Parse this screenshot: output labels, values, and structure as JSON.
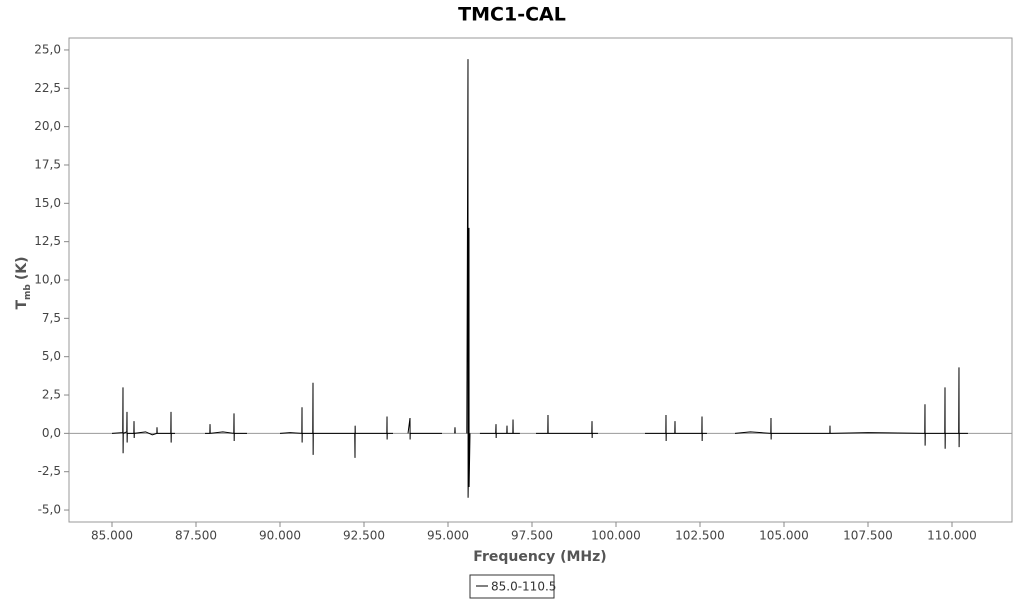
{
  "chart_data": {
    "type": "line",
    "title": "TMC1-CAL",
    "x_label": "Frequency (MHz)",
    "y_label": "T",
    "y_label_sub": "mb",
    "y_label_unit": "(K)",
    "xlim": [
      83720,
      111786
    ],
    "ylim": [
      -5.78,
      25.78
    ],
    "xticks": [
      {
        "value": 85000,
        "label": "85.000"
      },
      {
        "value": 87500,
        "label": "87.500"
      },
      {
        "value": 90000,
        "label": "90.000"
      },
      {
        "value": 92500,
        "label": "92.500"
      },
      {
        "value": 95000,
        "label": "95.000"
      },
      {
        "value": 97500,
        "label": "97.500"
      },
      {
        "value": 100000,
        "label": "100.000"
      },
      {
        "value": 102500,
        "label": "102.500"
      },
      {
        "value": 105000,
        "label": "105.000"
      },
      {
        "value": 107500,
        "label": "107.500"
      },
      {
        "value": 110000,
        "label": "110.000"
      }
    ],
    "yticks": [
      {
        "value": -5,
        "label": "-5,0"
      },
      {
        "value": -2.5,
        "label": "-2,5"
      },
      {
        "value": 0,
        "label": "0,0"
      },
      {
        "value": 2.5,
        "label": "2,5"
      },
      {
        "value": 5,
        "label": "5,0"
      },
      {
        "value": 7.5,
        "label": "7,5"
      },
      {
        "value": 10,
        "label": "10,0"
      },
      {
        "value": 12.5,
        "label": "12,5"
      },
      {
        "value": 15,
        "label": "15,0"
      },
      {
        "value": 17.5,
        "label": "17,5"
      },
      {
        "value": 20,
        "label": "20,0"
      },
      {
        "value": 22.5,
        "label": "22,5"
      },
      {
        "value": 25,
        "label": "25,0"
      }
    ],
    "x": [
      85000,
      85320,
      85327,
      85330,
      85335,
      85440,
      85446,
      85450,
      85455,
      85650,
      85655,
      85660,
      85665,
      86000,
      86200,
      86335,
      86339,
      86345,
      86750,
      86756,
      86760,
      86765,
      86875,
      87300,
      87768,
      87912,
      87917,
      87922,
      88300,
      88625,
      88631,
      88636,
      88640,
      89018,
      89500,
      90000,
      90300,
      90650,
      90655,
      90658,
      90662,
      90975,
      90982,
      90986,
      90990,
      91488,
      92225,
      92232,
      92236,
      92240,
      93180,
      93185,
      93188,
      93192,
      93363,
      93600,
      93810,
      93869,
      93872,
      93876,
      94821,
      95000,
      95200,
      95208,
      95215,
      95400,
      95560,
      95595,
      95598,
      95620,
      95625,
      95628,
      95655,
      95800,
      95950,
      96420,
      96429,
      96433,
      96437,
      96750,
      96756,
      96760,
      96930,
      96935,
      96940,
      97140,
      97400,
      97619,
      97970,
      97976,
      97980,
      99280,
      99286,
      99290,
      99295,
      99464,
      100200,
      100863,
      101483,
      101488,
      101492,
      101496,
      101750,
      101756,
      101760,
      102555,
      102560,
      102564,
      102568,
      102708,
      103100,
      103542,
      104000,
      104608,
      104613,
      104617,
      104621,
      106365,
      106369,
      106373,
      107500,
      109190,
      109196,
      109200,
      109205,
      109786,
      109792,
      109796,
      109800,
      110200,
      110208,
      110212,
      110216,
      110476
    ],
    "series": [
      {
        "name": "85.0-110.5",
        "color": "#000000",
        "values": [
          0,
          0.05,
          3.0,
          -1.3,
          0,
          0.1,
          1.4,
          -0.6,
          0,
          0,
          0.8,
          -0.3,
          0,
          0.1,
          -0.1,
          0,
          0.4,
          0,
          0,
          1.4,
          -0.6,
          0,
          0,
          null,
          0,
          0,
          0.6,
          0,
          0.1,
          0,
          1.3,
          -0.5,
          0,
          0,
          null,
          0,
          0.05,
          0,
          1.7,
          -0.6,
          0,
          0,
          3.3,
          -1.4,
          0,
          0,
          0,
          -1.6,
          0.5,
          0,
          0,
          1.1,
          -0.4,
          0,
          0,
          null,
          0,
          1.0,
          -0.4,
          0,
          0,
          null,
          0,
          0.4,
          0,
          null,
          0,
          24.4,
          -4.2,
          0,
          13.4,
          -3.5,
          0,
          null,
          0,
          0,
          0.6,
          -0.3,
          0,
          0,
          0.5,
          0,
          0,
          0.9,
          0,
          0,
          null,
          0,
          0,
          1.2,
          0,
          0,
          0.8,
          -0.3,
          0,
          0,
          null,
          0,
          0,
          1.2,
          -0.5,
          0,
          0,
          0.8,
          0,
          0,
          1.1,
          -0.5,
          0,
          0,
          null,
          0,
          0.1,
          0,
          1.0,
          -0.4,
          0,
          0,
          0.5,
          0,
          0.05,
          0,
          1.9,
          -0.8,
          0,
          0,
          3.0,
          -1.0,
          0,
          0,
          4.3,
          -0.9,
          0,
          0
        ]
      }
    ]
  }
}
